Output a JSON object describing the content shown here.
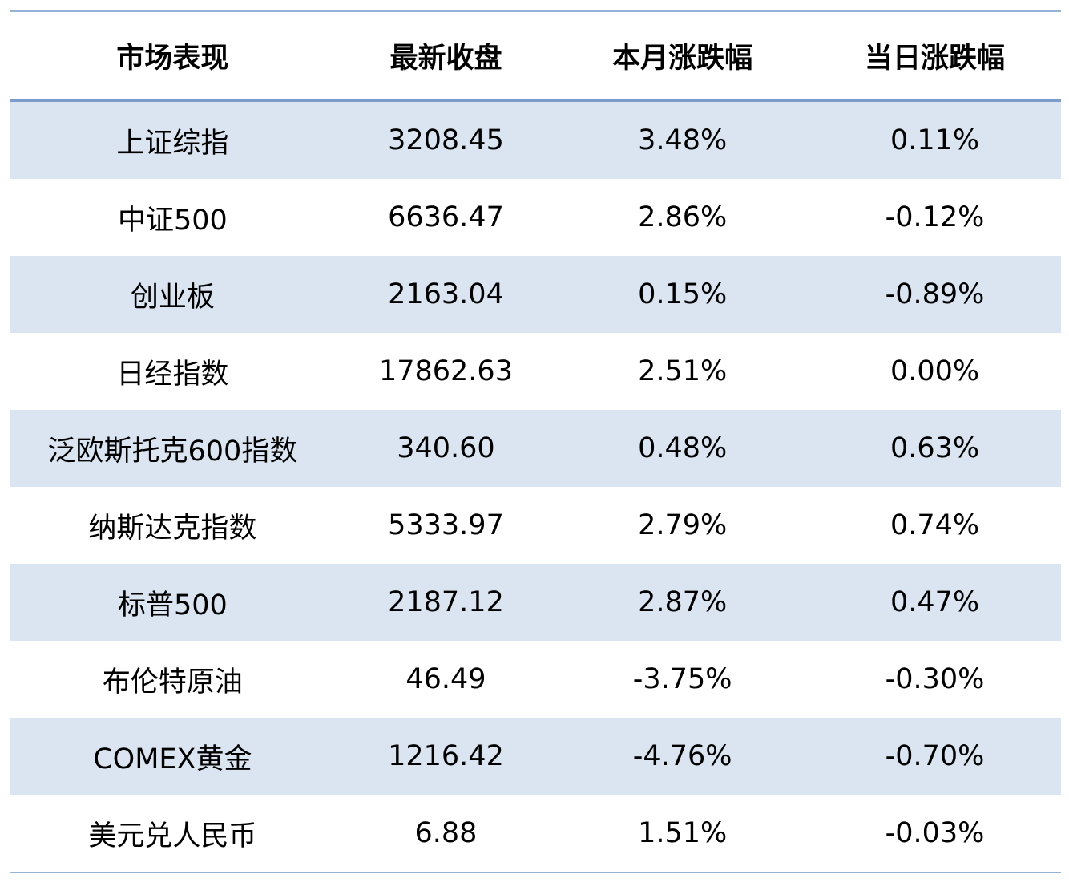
{
  "colors": {
    "row_band_bg": "#dbe5f1",
    "outer_rule": "#95b3d7",
    "header_rule": "#7b9cc9",
    "text": "#000000"
  },
  "chart_data": {
    "type": "table",
    "title": "市场表现",
    "columns": [
      "市场表现",
      "最新收盘",
      "本月涨跌幅",
      "当日涨跌幅"
    ],
    "rows": [
      {
        "market": "上证综指",
        "close": "3208.45",
        "month_pct": "3.48%",
        "day_pct": "0.11%"
      },
      {
        "market": "中证500",
        "close": "6636.47",
        "month_pct": "2.86%",
        "day_pct": "-0.12%"
      },
      {
        "market": "创业板",
        "close": "2163.04",
        "month_pct": "0.15%",
        "day_pct": "-0.89%"
      },
      {
        "market": "日经指数",
        "close": "17862.63",
        "month_pct": "2.51%",
        "day_pct": "0.00%"
      },
      {
        "market": "泛欧斯托克600指数",
        "close": "340.60",
        "month_pct": "0.48%",
        "day_pct": "0.63%"
      },
      {
        "market": "纳斯达克指数",
        "close": "5333.97",
        "month_pct": "2.79%",
        "day_pct": "0.74%"
      },
      {
        "market": "标普500",
        "close": "2187.12",
        "month_pct": "2.87%",
        "day_pct": "0.47%"
      },
      {
        "market": "布伦特原油",
        "close": "46.49",
        "month_pct": "-3.75%",
        "day_pct": "-0.30%"
      },
      {
        "market": "COMEX黄金",
        "close": "1216.42",
        "month_pct": "-4.76%",
        "day_pct": "-0.70%"
      },
      {
        "market": "美元兑人民币",
        "close": "6.88",
        "month_pct": "1.51%",
        "day_pct": "-0.03%"
      }
    ]
  }
}
